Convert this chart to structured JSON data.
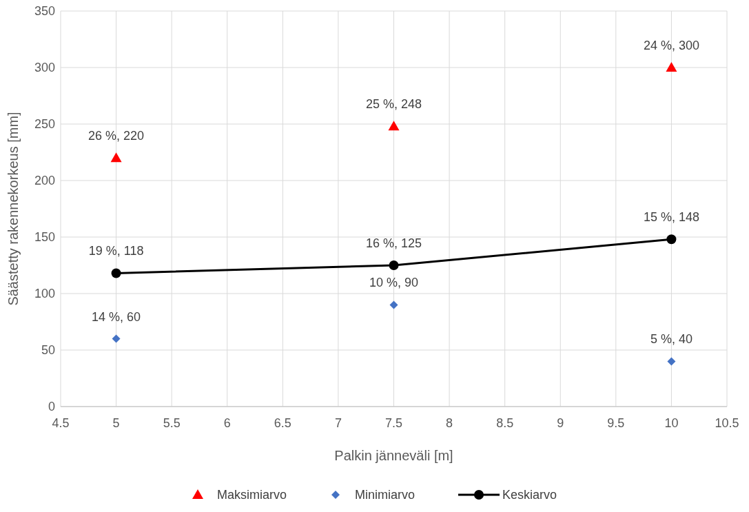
{
  "chart_data": {
    "type": "scatter",
    "xlabel": "Palkin jänneväli [m]",
    "ylabel": "Säästetty rakennekorkeus [mm]",
    "x": [
      5,
      7.5,
      10
    ],
    "series": [
      {
        "name": "Maksimiarvo",
        "color": "#ff0000",
        "marker": "triangle",
        "values": [
          220,
          248,
          300
        ],
        "value_labels": [
          "26 %, 220",
          "25 %, 248",
          "24 %, 300"
        ]
      },
      {
        "name": "Minimiarvo",
        "color": "#4472c4",
        "marker": "diamond",
        "values": [
          60,
          90,
          40
        ],
        "value_labels": [
          "14 %, 60",
          "10 %, 90",
          "5 %, 40"
        ]
      },
      {
        "name": "Keskiarvo",
        "type": "line",
        "color": "#000000",
        "marker": "circle",
        "line_style": "solid",
        "values": [
          118,
          125,
          148
        ],
        "value_labels": [
          "19 %, 118",
          "16 %, 125",
          "15 %, 148"
        ]
      }
    ],
    "xlim": [
      4.5,
      10.5
    ],
    "xticks": [
      4.5,
      5,
      5.5,
      6,
      6.5,
      7,
      7.5,
      8,
      8.5,
      9,
      9.5,
      10,
      10.5
    ],
    "ylim": [
      0,
      350
    ],
    "yticks": [
      0,
      50,
      100,
      150,
      200,
      250,
      300,
      350
    ],
    "grid": true,
    "legend": "bottom"
  }
}
